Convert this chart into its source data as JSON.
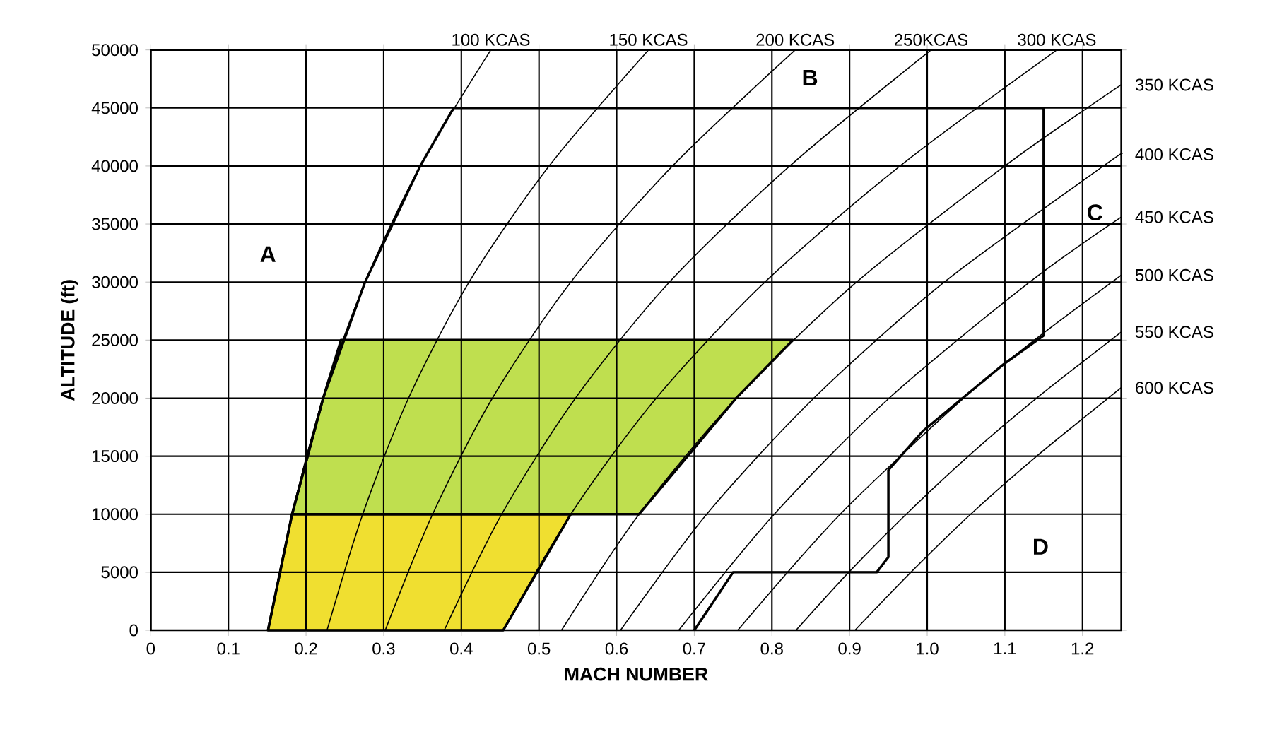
{
  "chart_data": {
    "type": "line",
    "xlabel": "MACH NUMBER",
    "ylabel": "ALTITUDE (ft)",
    "xlim": [
      0,
      1.25
    ],
    "ylim": [
      0,
      50000
    ],
    "xticks": [
      0,
      0.1,
      0.2,
      0.3,
      0.4,
      0.5,
      0.6,
      0.7,
      0.8,
      0.9,
      {
        "value": 1,
        "label": "1.0"
      },
      1.1,
      1.2
    ],
    "yticks": [
      0,
      5000,
      10000,
      15000,
      20000,
      25000,
      30000,
      35000,
      40000,
      45000,
      50000
    ],
    "grid": true,
    "series": [
      {
        "type": "area",
        "color": "#f0df30",
        "x": [
          0.151,
          0.454,
          0.541,
          0.182
        ],
        "values": [
          0,
          0,
          10000,
          10000
        ]
      },
      {
        "type": "area",
        "color": "#bfdf4f",
        "x": [
          0.182,
          0.629,
          0.754,
          0.827,
          0.245,
          0.222
        ],
        "values": [
          10000,
          10000,
          20000,
          25000,
          25000,
          20000
        ]
      },
      {
        "name": "100 KCAS",
        "color": "#000000",
        "x": [
          0.151,
          0.182,
          0.222,
          0.276,
          0.347,
          0.438
        ],
        "values": [
          0,
          10000,
          20000,
          30000,
          40000,
          50000
        ]
      },
      {
        "name": "150 KCAS",
        "color": "#000000",
        "x": [
          0.227,
          0.273,
          0.332,
          0.41,
          0.513,
          0.641
        ],
        "values": [
          0,
          10000,
          20000,
          30000,
          40000,
          50000
        ]
      },
      {
        "name": "200 KCAS",
        "color": "#000000",
        "x": [
          0.302,
          0.363,
          0.44,
          0.541,
          0.672,
          0.83
        ],
        "values": [
          0,
          10000,
          20000,
          30000,
          40000,
          50000
        ]
      },
      {
        "name": "250KCAS",
        "color": "#000000",
        "x": [
          0.378,
          0.452,
          0.547,
          0.668,
          0.823,
          1.005
        ],
        "values": [
          0,
          10000,
          20000,
          30000,
          40000,
          50000
        ]
      },
      {
        "name": "300 KCAS",
        "color": "#000000",
        "x": [
          0.454,
          0.541,
          0.651,
          0.791,
          0.965,
          1.167
        ],
        "values": [
          0,
          10000,
          20000,
          30000,
          40000,
          50000
        ]
      },
      {
        "name": "350 KCAS",
        "color": "#000000",
        "x": [
          0.529,
          0.629,
          0.754,
          0.909,
          1.1,
          1.206,
          1.25
        ],
        "values": [
          0,
          10000,
          20000,
          30000,
          40000,
          45000,
          47000
        ]
      },
      {
        "name": "400 KCAS",
        "color": "#000000",
        "x": [
          0.605,
          0.716,
          0.854,
          1.022,
          1.227,
          1.25
        ],
        "values": [
          0,
          10000,
          20000,
          30000,
          40000,
          41000
        ]
      },
      {
        "name": "450 KCAS",
        "color": "#000000",
        "x": [
          0.68,
          0.803,
          0.951,
          1.132,
          1.25
        ],
        "values": [
          0,
          10000,
          20000,
          30000,
          35600
        ]
      },
      {
        "name": "500 KCAS",
        "color": "#000000",
        "x": [
          0.756,
          0.888,
          1.047,
          1.138,
          1.25
        ],
        "values": [
          0,
          10000,
          20000,
          25000,
          30600
        ]
      },
      {
        "name": "550 KCAS",
        "color": "#000000",
        "x": [
          0.831,
          0.899,
          0.973,
          1.053,
          1.141,
          1.25
        ],
        "values": [
          0,
          5000,
          10000,
          15000,
          20000,
          25700
        ]
      },
      {
        "name": "600 KCAS",
        "color": "#000000",
        "x": [
          0.907,
          0.979,
          1.056,
          1.141,
          1.25
        ],
        "values": [
          0,
          5000,
          10000,
          15000,
          20900
        ]
      },
      {
        "color": "#000000",
        "x": [
          0.151,
          0.182,
          0.222,
          0.276,
          0.347,
          0.39,
          1.15,
          1.15,
          1.098,
          0.995,
          0.95,
          0.95,
          0.935,
          0.75,
          0.7
        ],
        "values": [
          0,
          10000,
          20000,
          30000,
          40000,
          45000,
          45000,
          25400,
          22900,
          17200,
          13800,
          6300,
          5000,
          5000,
          0
        ]
      }
    ],
    "annotations": [
      {
        "text": "A",
        "x": 0.151,
        "y": 32400
      },
      {
        "text": "B",
        "x": 0.849,
        "y": 47600
      },
      {
        "text": "C",
        "x": 1.216,
        "y": 36000
      },
      {
        "text": "D",
        "x": 1.146,
        "y": 7200
      }
    ]
  }
}
